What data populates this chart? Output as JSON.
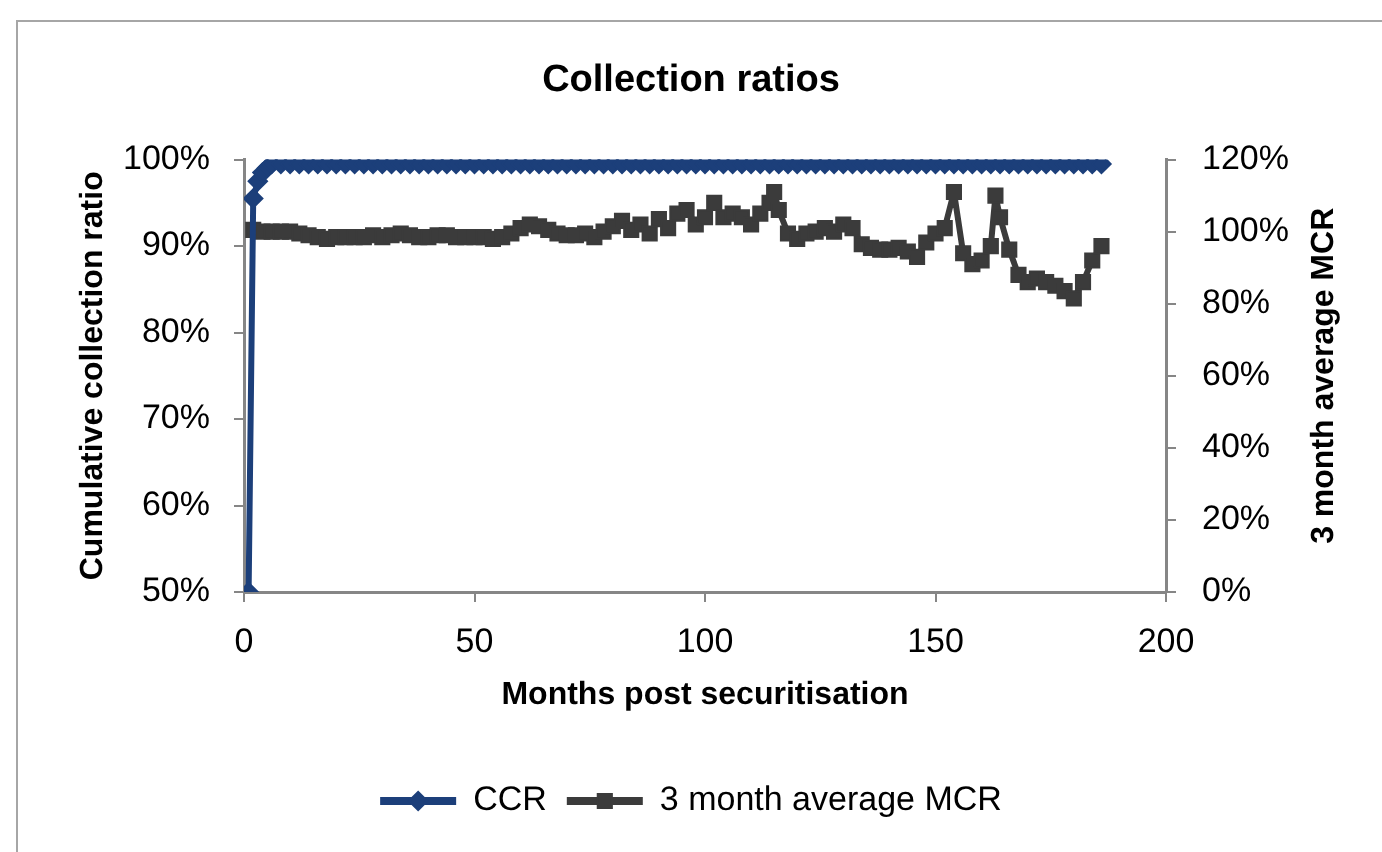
{
  "chart_data": {
    "type": "line",
    "title": "Collection ratios",
    "xlabel": "Months post securitisation",
    "ylabel": "Cumulative collection ratio",
    "y2label": "3 month average MCR",
    "xlim": [
      0,
      200
    ],
    "xticks": [
      0,
      50,
      100,
      150,
      200
    ],
    "ylim": [
      50,
      100
    ],
    "yticks": [
      {
        "value": 50,
        "label": "50%"
      },
      {
        "value": 60,
        "label": "60%"
      },
      {
        "value": 70,
        "label": "70%"
      },
      {
        "value": 80,
        "label": "80%"
      },
      {
        "value": 90,
        "label": "90%"
      },
      {
        "value": 100,
        "label": "100%"
      }
    ],
    "y2lim": [
      0,
      120
    ],
    "y2ticks": [
      {
        "value": 0,
        "label": "0%"
      },
      {
        "value": 20,
        "label": "20%"
      },
      {
        "value": 40,
        "label": "40%"
      },
      {
        "value": 60,
        "label": "60%"
      },
      {
        "value": 80,
        "label": "80%"
      },
      {
        "value": 100,
        "label": "100%"
      },
      {
        "value": 120,
        "label": "120%"
      }
    ],
    "grid": false,
    "legend": "bottom",
    "series": [
      {
        "name": "CCR",
        "color": "#1c3f7a",
        "marker": "diamond",
        "x": [
          1,
          2,
          3,
          4,
          5,
          6,
          8,
          10,
          12,
          14,
          16,
          18,
          20,
          22,
          24,
          26,
          28,
          30,
          32,
          34,
          36,
          38,
          40,
          42,
          44,
          46,
          48,
          50,
          52,
          54,
          56,
          58,
          60,
          62,
          64,
          66,
          68,
          70,
          72,
          74,
          76,
          78,
          80,
          82,
          84,
          86,
          88,
          90,
          92,
          94,
          96,
          98,
          100,
          102,
          104,
          106,
          108,
          110,
          112,
          114,
          116,
          118,
          120,
          122,
          124,
          126,
          128,
          130,
          132,
          134,
          136,
          138,
          140,
          142,
          144,
          146,
          148,
          150,
          152,
          154,
          156,
          158,
          160,
          162,
          164,
          166,
          168,
          170,
          172,
          174,
          176,
          178,
          180,
          182,
          184,
          186
        ],
        "values": [
          50,
          95.5,
          97.5,
          98.5,
          99,
          99.5,
          99.5,
          99.5,
          99.5,
          99.5,
          99.5,
          99.5,
          99.5,
          99.5,
          99.5,
          99.5,
          99.5,
          99.5,
          99.5,
          99.5,
          99.5,
          99.5,
          99.5,
          99.5,
          99.5,
          99.5,
          99.5,
          99.5,
          99.5,
          99.5,
          99.5,
          99.5,
          99.5,
          99.5,
          99.5,
          99.5,
          99.5,
          99.5,
          99.5,
          99.5,
          99.5,
          99.5,
          99.5,
          99.5,
          99.5,
          99.5,
          99.5,
          99.5,
          99.5,
          99.5,
          99.5,
          99.5,
          99.5,
          99.5,
          99.5,
          99.5,
          99.5,
          99.5,
          99.5,
          99.5,
          99.5,
          99.5,
          99.5,
          99.5,
          99.5,
          99.5,
          99.5,
          99.5,
          99.5,
          99.5,
          99.5,
          99.5,
          99.5,
          99.5,
          99.5,
          99.5,
          99.5,
          99.5,
          99.5,
          99.5,
          99.5,
          99.5,
          99.5,
          99.5,
          99.5,
          99.5,
          99.5,
          99.5,
          99.5,
          99.5,
          99.5,
          99.5,
          99.5,
          99.5,
          99.5,
          99.5
        ]
      },
      {
        "name": "3 month average MCR",
        "color": "#3b3b3b",
        "marker": "square",
        "axis": "y2",
        "x": [
          2,
          4,
          6,
          8,
          10,
          12,
          14,
          16,
          18,
          20,
          22,
          24,
          26,
          28,
          30,
          32,
          34,
          36,
          38,
          40,
          42,
          44,
          46,
          48,
          50,
          52,
          54,
          56,
          58,
          60,
          62,
          64,
          66,
          68,
          70,
          72,
          74,
          76,
          78,
          80,
          82,
          84,
          86,
          88,
          90,
          92,
          94,
          96,
          98,
          100,
          102,
          104,
          106,
          108,
          110,
          112,
          114,
          115,
          116,
          118,
          120,
          122,
          124,
          126,
          128,
          130,
          132,
          134,
          136,
          138,
          140,
          142,
          144,
          146,
          148,
          150,
          152,
          154,
          156,
          158,
          160,
          162,
          163,
          164,
          166,
          168,
          170,
          172,
          174,
          176,
          178,
          180,
          182,
          184,
          186
        ],
        "values": [
          100.5,
          100,
          100,
          100,
          100,
          99.5,
          99,
          98.5,
          98,
          98.5,
          98.5,
          98.5,
          98.5,
          99,
          98.5,
          99,
          99.5,
          99,
          98.5,
          98.5,
          99,
          99,
          98.5,
          98.5,
          98.5,
          98.5,
          98,
          98.5,
          99.5,
          101,
          102,
          101.5,
          100.5,
          99.5,
          99,
          99,
          99.5,
          98.5,
          100,
          101.5,
          103,
          100.5,
          102,
          99.5,
          103.5,
          101,
          105,
          106,
          102,
          104,
          108,
          104,
          105,
          104,
          102,
          105,
          108,
          111,
          106,
          99.5,
          98,
          99.5,
          100,
          101,
          100,
          102,
          101,
          96.5,
          95.5,
          95,
          95,
          95.5,
          94.5,
          93,
          97,
          99.5,
          101,
          111,
          94,
          91,
          92,
          96,
          110,
          104,
          95,
          88,
          86,
          87,
          86,
          85,
          83.5,
          81.5,
          86,
          92,
          96
        ]
      }
    ]
  }
}
